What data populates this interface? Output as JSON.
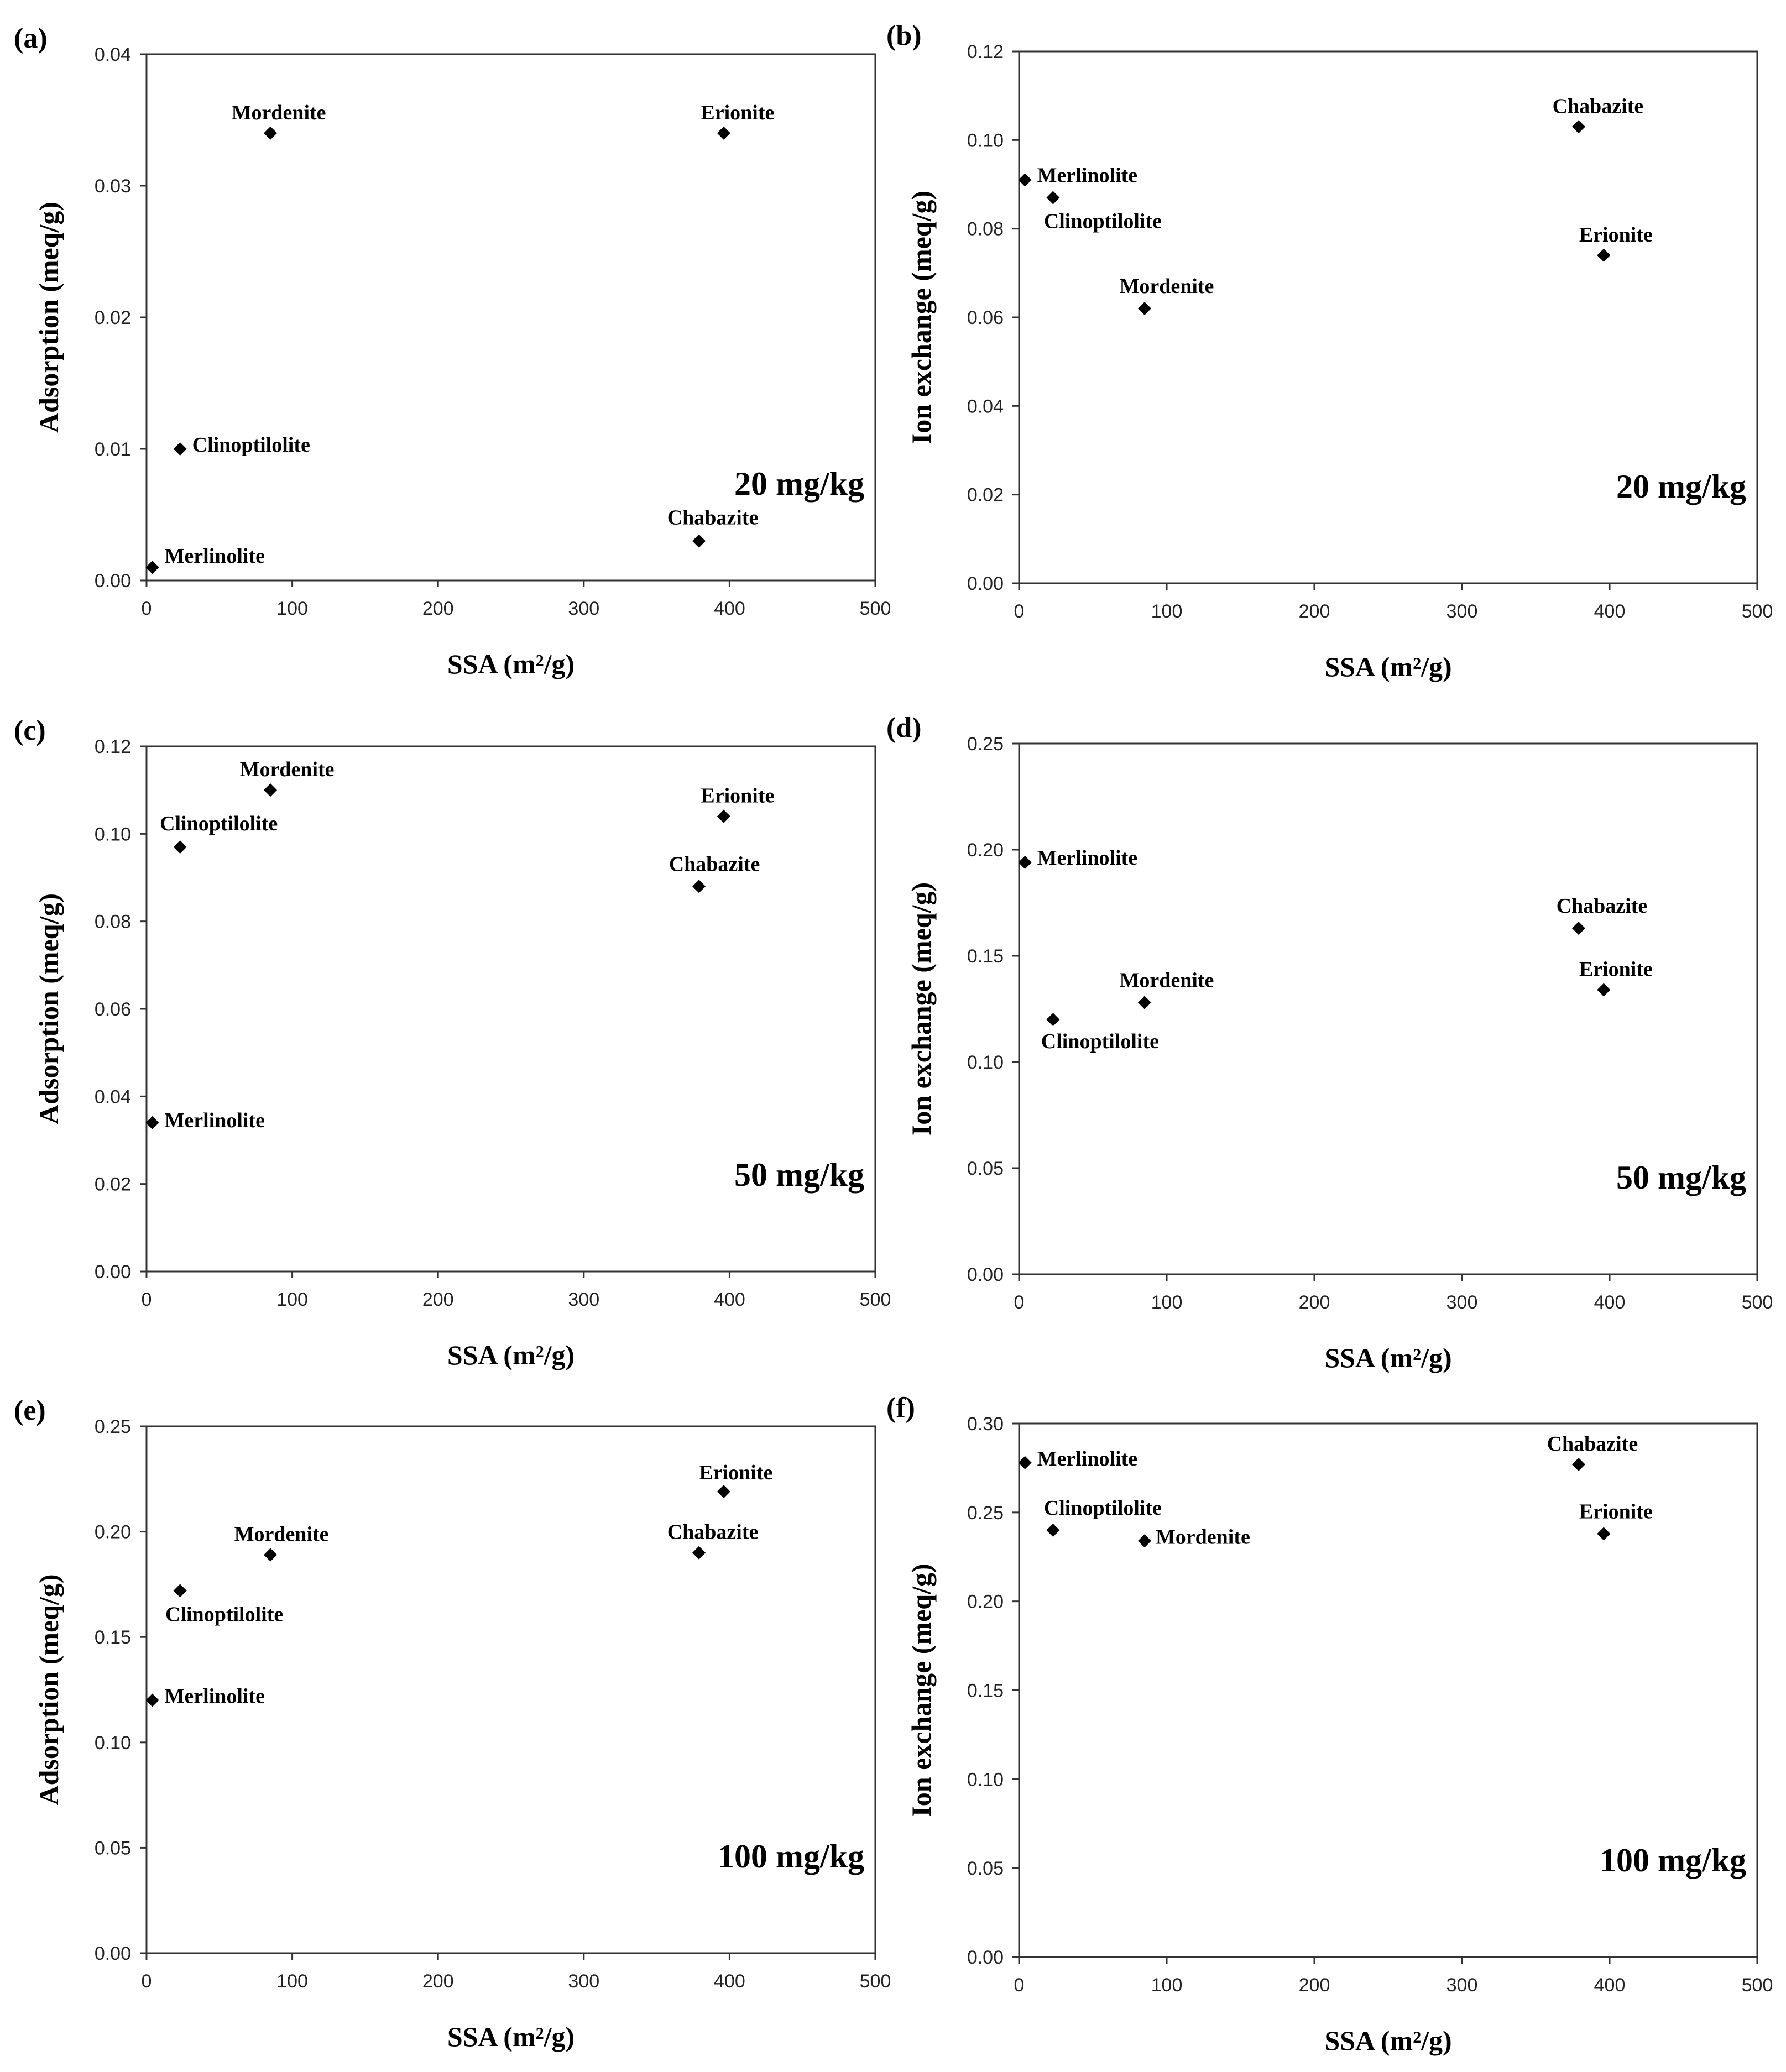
{
  "chart_data": [
    {
      "type": "scatter",
      "panel": "(a)",
      "annotation": "20 mg/kg",
      "xlabel": "SSA (m²/g)",
      "ylabel": "Adsorption (meq/g)",
      "xlim": [
        0,
        500
      ],
      "ylim": [
        0,
        0.04
      ],
      "xticks": [
        "0",
        "100",
        "200",
        "300",
        "400",
        "500"
      ],
      "yticks": [
        "0.00",
        "0.01",
        "0.02",
        "0.03",
        "0.04"
      ],
      "points": [
        {
          "label": "Merlinolite",
          "x": 4,
          "y": 0.001
        },
        {
          "label": "Clinoptilolite",
          "x": 23,
          "y": 0.01
        },
        {
          "label": "Mordenite",
          "x": 85,
          "y": 0.034
        },
        {
          "label": "Chabazite",
          "x": 379,
          "y": 0.003
        },
        {
          "label": "Erionite",
          "x": 396,
          "y": 0.034
        }
      ]
    },
    {
      "type": "scatter",
      "panel": "(b)",
      "annotation": "20 mg/kg",
      "xlabel": "SSA (m²/g)",
      "ylabel": "Ion exchange (meq/g)",
      "xlim": [
        0,
        500
      ],
      "ylim": [
        0,
        0.12
      ],
      "xticks": [
        "0",
        "100",
        "200",
        "300",
        "400",
        "500"
      ],
      "yticks": [
        "0.00",
        "0.02",
        "0.04",
        "0.06",
        "0.08",
        "0.10",
        "0.12"
      ],
      "points": [
        {
          "label": "Merlinolite",
          "x": 4,
          "y": 0.091
        },
        {
          "label": "Clinoptilolite",
          "x": 23,
          "y": 0.087
        },
        {
          "label": "Mordenite",
          "x": 85,
          "y": 0.062
        },
        {
          "label": "Chabazite",
          "x": 379,
          "y": 0.103
        },
        {
          "label": "Erionite",
          "x": 396,
          "y": 0.074
        }
      ]
    },
    {
      "type": "scatter",
      "panel": "(c)",
      "annotation": "50 mg/kg",
      "xlabel": "SSA (m²/g)",
      "ylabel": "Adsorption (meq/g)",
      "xlim": [
        0,
        500
      ],
      "ylim": [
        0,
        0.12
      ],
      "xticks": [
        "0",
        "100",
        "200",
        "300",
        "400",
        "500"
      ],
      "yticks": [
        "0.00",
        "0.02",
        "0.04",
        "0.06",
        "0.08",
        "0.10",
        "0.12"
      ],
      "points": [
        {
          "label": "Merlinolite",
          "x": 4,
          "y": 0.034
        },
        {
          "label": "Clinoptilolite",
          "x": 23,
          "y": 0.097
        },
        {
          "label": "Mordenite",
          "x": 85,
          "y": 0.11
        },
        {
          "label": "Chabazite",
          "x": 379,
          "y": 0.088
        },
        {
          "label": "Erionite",
          "x": 396,
          "y": 0.104
        }
      ]
    },
    {
      "type": "scatter",
      "panel": "(d)",
      "annotation": "50 mg/kg",
      "xlabel": "SSA (m²/g)",
      "ylabel": "Ion exchange (meq/g)",
      "xlim": [
        0,
        500
      ],
      "ylim": [
        0,
        0.25
      ],
      "xticks": [
        "0",
        "100",
        "200",
        "300",
        "400",
        "500"
      ],
      "yticks": [
        "0.00",
        "0.05",
        "0.10",
        "0.15",
        "0.20",
        "0.25"
      ],
      "points": [
        {
          "label": "Merlinolite",
          "x": 4,
          "y": 0.194
        },
        {
          "label": "Clinoptilolite",
          "x": 23,
          "y": 0.12
        },
        {
          "label": "Mordenite",
          "x": 85,
          "y": 0.128
        },
        {
          "label": "Chabazite",
          "x": 379,
          "y": 0.163
        },
        {
          "label": "Erionite",
          "x": 396,
          "y": 0.134
        }
      ]
    },
    {
      "type": "scatter",
      "panel": "(e)",
      "annotation": "100 mg/kg",
      "xlabel": "SSA (m²/g)",
      "ylabel": "Adsorption (meq/g)",
      "xlim": [
        0,
        500
      ],
      "ylim": [
        0,
        0.25
      ],
      "xticks": [
        "0",
        "100",
        "200",
        "300",
        "400",
        "500"
      ],
      "yticks": [
        "0.00",
        "0.05",
        "0.10",
        "0.15",
        "0.20",
        "0.25"
      ],
      "points": [
        {
          "label": "Merlinolite",
          "x": 4,
          "y": 0.12
        },
        {
          "label": "Clinoptilolite",
          "x": 23,
          "y": 0.172
        },
        {
          "label": "Mordenite",
          "x": 85,
          "y": 0.189
        },
        {
          "label": "Chabazite",
          "x": 379,
          "y": 0.19
        },
        {
          "label": "Erionite",
          "x": 396,
          "y": 0.219
        }
      ]
    },
    {
      "type": "scatter",
      "panel": "(f)",
      "annotation": "100 mg/kg",
      "xlabel": "SSA (m²/g)",
      "ylabel": "Ion exchange (meq/g)",
      "xlim": [
        0,
        500
      ],
      "ylim": [
        0,
        0.3
      ],
      "xticks": [
        "0",
        "100",
        "200",
        "300",
        "400",
        "500"
      ],
      "yticks": [
        "0.00",
        "0.05",
        "0.10",
        "0.15",
        "0.20",
        "0.25",
        "0.30"
      ],
      "points": [
        {
          "label": "Merlinolite",
          "x": 4,
          "y": 0.278
        },
        {
          "label": "Clinoptilolite",
          "x": 23,
          "y": 0.24
        },
        {
          "label": "Mordenite",
          "x": 85,
          "y": 0.234
        },
        {
          "label": "Chabazite",
          "x": 379,
          "y": 0.277
        },
        {
          "label": "Erionite",
          "x": 396,
          "y": 0.238
        }
      ]
    }
  ]
}
